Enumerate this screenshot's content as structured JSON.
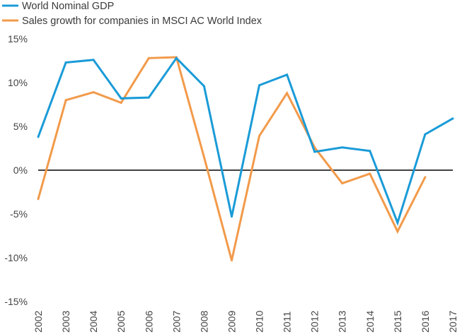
{
  "chart_data": {
    "type": "line",
    "categories": [
      "2002",
      "2003",
      "2004",
      "2005",
      "2006",
      "2007",
      "2008",
      "2009",
      "2010",
      "2011",
      "2012",
      "2013",
      "2014",
      "2015",
      "2016",
      "2017"
    ],
    "series": [
      {
        "name": "World Nominal GDP",
        "color": "#1A9BD7",
        "values": [
          3.8,
          12.3,
          12.6,
          8.2,
          8.3,
          12.8,
          9.6,
          -5.3,
          9.7,
          10.9,
          2.1,
          2.6,
          2.2,
          -6.0,
          4.1,
          5.9
        ]
      },
      {
        "name": "Sales growth for companies in MSCI AC World Index",
        "color": "#F29A4A",
        "values": [
          -3.3,
          8.0,
          8.9,
          7.7,
          12.8,
          12.9,
          1.5,
          -10.3,
          3.9,
          8.8,
          2.6,
          -1.5,
          -0.4,
          -7.0,
          -0.8,
          null
        ]
      }
    ],
    "xlabel": "",
    "ylabel": "",
    "ylim": [
      -15,
      15
    ],
    "yticks": [
      15,
      10,
      5,
      0,
      -5,
      -10,
      -15
    ],
    "ytick_labels": [
      "15%",
      "10%",
      "5%",
      "0%",
      "-5%",
      "-10%",
      "-15%"
    ],
    "zero_line_color": "#000000",
    "grid": false,
    "legend_position": "top-left"
  }
}
